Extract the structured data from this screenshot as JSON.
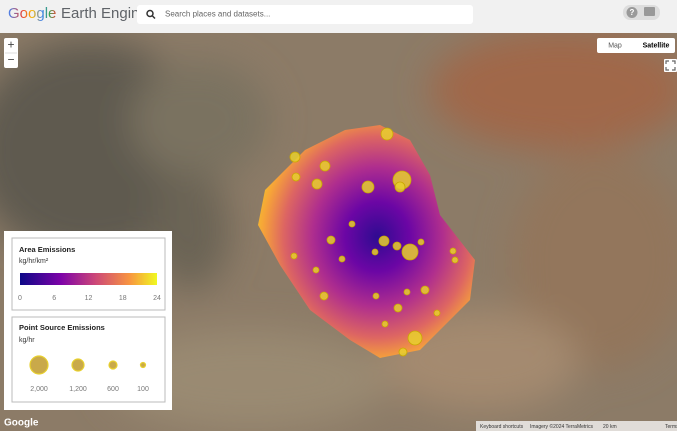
{
  "header": {
    "logo_brand": "Google",
    "logo_product": "Earth Engine",
    "search_placeholder": "Search places and datasets...",
    "help": "?"
  },
  "map_controls": {
    "zoom_in": "+",
    "zoom_out": "−",
    "map_type": [
      "Map",
      "Satellite"
    ]
  },
  "legend": {
    "area": {
      "title": "Area Emissions",
      "unit": "kg/hr/km²",
      "ticks": [
        "0",
        "6",
        "12",
        "18",
        "24"
      ]
    },
    "point": {
      "title": "Point Source Emissions",
      "unit": "kg/hr",
      "sizes": [
        "2,000",
        "1,200",
        "600",
        "100"
      ]
    }
  },
  "footer": {
    "logo": "Google",
    "attribution": [
      "Keyboard shortcuts",
      "Imagery ©2024 TerraMetrics",
      "20 km",
      "Terms"
    ]
  }
}
